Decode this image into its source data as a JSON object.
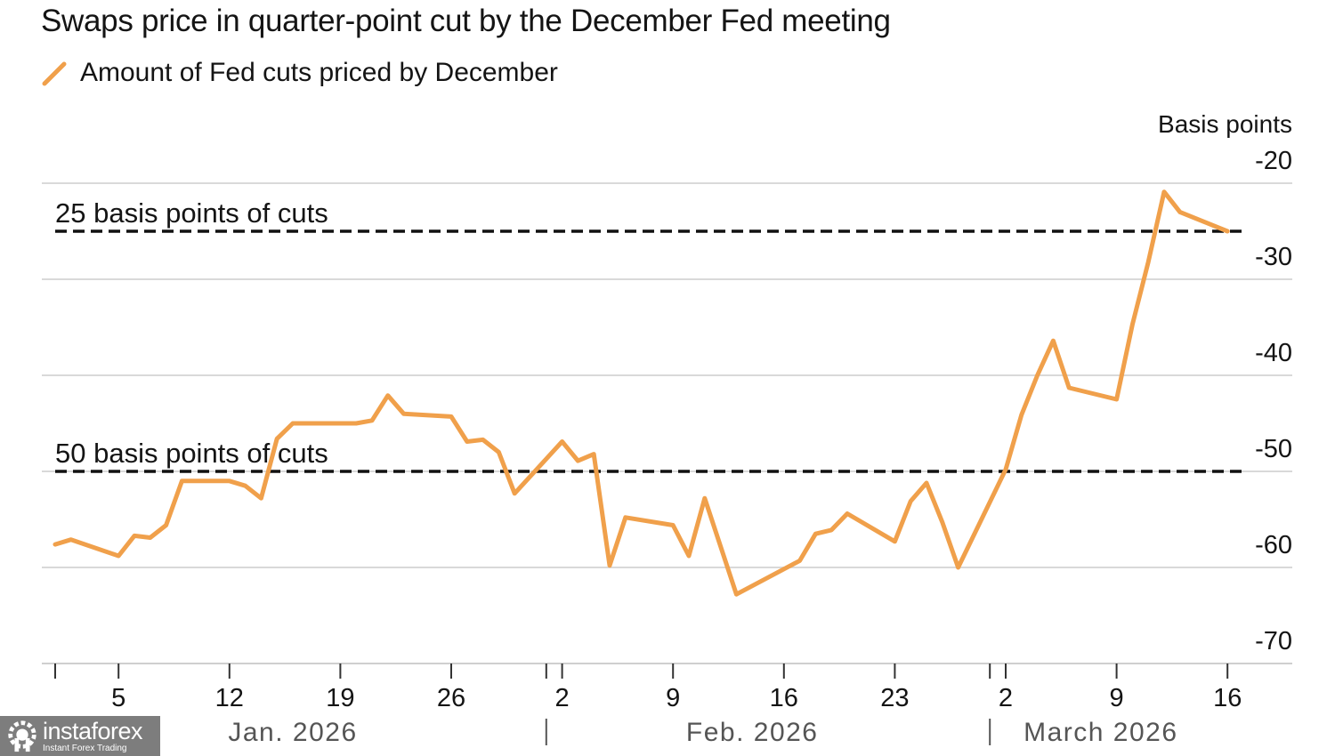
{
  "chart_data": {
    "type": "line",
    "title": "Swaps price in quarter-point cut by the December Fed meeting",
    "legend": [
      {
        "name": "Amount of Fed cuts priced by December",
        "color": "#f0a04b",
        "marker": "line"
      }
    ],
    "legend_placement": "top-left",
    "ylabel": "Basis points",
    "xlabel": "",
    "ylim": [
      -70,
      -20
    ],
    "y_ticks": [
      -20,
      -30,
      -40,
      -50,
      -60,
      -70
    ],
    "y_axis_side": "right",
    "grid": "horizontal",
    "x_start": "2026-01-01",
    "x_end": "2026-03-17",
    "x_ticks": [
      {
        "date": "2026-01-01",
        "label": ""
      },
      {
        "date": "2026-01-05",
        "label": "5"
      },
      {
        "date": "2026-01-12",
        "label": "12"
      },
      {
        "date": "2026-01-19",
        "label": "19"
      },
      {
        "date": "2026-01-26",
        "label": "26"
      },
      {
        "date": "2026-02-02",
        "label": "2"
      },
      {
        "date": "2026-02-09",
        "label": "9"
      },
      {
        "date": "2026-02-16",
        "label": "16"
      },
      {
        "date": "2026-02-23",
        "label": "23"
      },
      {
        "date": "2026-03-02",
        "label": "2"
      },
      {
        "date": "2026-03-09",
        "label": "9"
      },
      {
        "date": "2026-03-16",
        "label": "16"
      }
    ],
    "month_boundaries": [
      "2026-02-01",
      "2026-03-01"
    ],
    "months": [
      {
        "label": "Jan. 2026",
        "center": "2026-01-16"
      },
      {
        "label": "Feb. 2026",
        "center": "2026-02-14"
      },
      {
        "label": "March 2026",
        "center": "2026-03-08"
      }
    ],
    "reference_lines": [
      {
        "value": -25,
        "label": "25 basis points of cuts",
        "style": "dashed"
      },
      {
        "value": -50,
        "label": "50 basis points of cuts",
        "style": "dashed"
      }
    ],
    "series": [
      {
        "name": "Amount of Fed cuts priced by December",
        "color": "#f0a04b",
        "x": [
          "2026-01-01",
          "2026-01-02",
          "2026-01-05",
          "2026-01-06",
          "2026-01-07",
          "2026-01-08",
          "2026-01-09",
          "2026-01-12",
          "2026-01-13",
          "2026-01-14",
          "2026-01-15",
          "2026-01-16",
          "2026-01-20",
          "2026-01-21",
          "2026-01-22",
          "2026-01-23",
          "2026-01-26",
          "2026-01-27",
          "2026-01-28",
          "2026-01-29",
          "2026-01-30",
          "2026-02-02",
          "2026-02-03",
          "2026-02-04",
          "2026-02-05",
          "2026-02-06",
          "2026-02-09",
          "2026-02-10",
          "2026-02-11",
          "2026-02-13",
          "2026-02-17",
          "2026-02-18",
          "2026-02-19",
          "2026-02-20",
          "2026-02-23",
          "2026-02-24",
          "2026-02-25",
          "2026-02-26",
          "2026-02-27",
          "2026-03-02",
          "2026-03-03",
          "2026-03-04",
          "2026-03-05",
          "2026-03-06",
          "2026-03-09",
          "2026-03-10",
          "2026-03-11",
          "2026-03-12",
          "2026-03-13",
          "2026-03-16"
        ],
        "values": [
          -57.6,
          -57.1,
          -58.8,
          -56.7,
          -56.9,
          -55.6,
          -51.0,
          -51.0,
          -51.5,
          -52.8,
          -46.6,
          -45.0,
          -45.0,
          -44.7,
          -42.1,
          -44.0,
          -44.3,
          -46.9,
          -46.7,
          -48.0,
          -52.3,
          -46.9,
          -48.9,
          -48.2,
          -59.8,
          -54.8,
          -55.6,
          -58.8,
          -52.8,
          -62.8,
          -59.3,
          -56.5,
          -56.1,
          -54.4,
          -57.3,
          -53.1,
          -51.2,
          -55.3,
          -60.0,
          -49.8,
          -44.1,
          -40.0,
          -36.4,
          -41.3,
          -42.5,
          -34.7,
          -28.2,
          -20.9,
          -23.0,
          -25.0
        ]
      }
    ]
  },
  "watermark": {
    "name": "instaforex",
    "tagline": "Instant Forex Trading"
  }
}
